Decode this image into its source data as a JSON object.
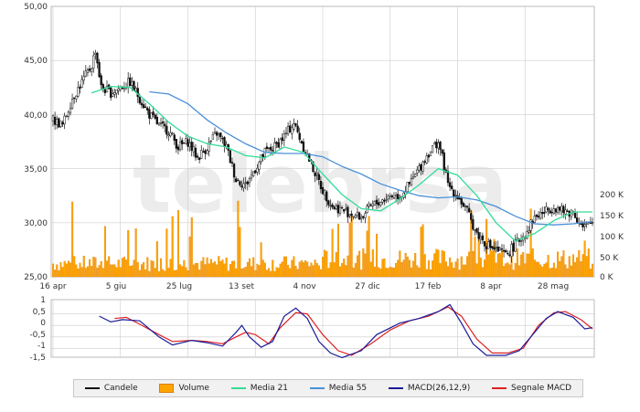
{
  "colors": {
    "candles": "#111111",
    "volume": "#ffa500",
    "volume_edge": "#e07b00",
    "ma21": "#33dd99",
    "ma55": "#4a90d9",
    "macd": "#1a1a99",
    "signal": "#dd2222",
    "grid": "#cccccc",
    "watermark": "#ececec"
  },
  "watermark": "telebrsa",
  "legend": {
    "candles": "Candele",
    "volume": "Volume",
    "ma21": "Media 21",
    "ma55": "Media 55",
    "macd": "MACD(26,12,9)",
    "signal": "Segnale MACD"
  },
  "chart_data": [
    {
      "type": "candlestick",
      "title": "",
      "x_ticks": [
        "16 apr",
        "5 giu",
        "25 lug",
        "13 set",
        "4 nov",
        "27 dic",
        "17 feb",
        "8 apr",
        "28 mag"
      ],
      "y_ticks": [
        "50,00",
        "45,00",
        "40,00",
        "35,00",
        "30,00",
        "25,00"
      ],
      "ylim": [
        25,
        50
      ],
      "grid": true,
      "price_points": [
        [
          0,
          39.5
        ],
        [
          5,
          39
        ],
        [
          10,
          41.5
        ],
        [
          15,
          43
        ],
        [
          20,
          44.5
        ],
        [
          22,
          46
        ],
        [
          25,
          42.5
        ],
        [
          30,
          42
        ],
        [
          35,
          42.5
        ],
        [
          40,
          43
        ],
        [
          45,
          41.5
        ],
        [
          50,
          40
        ],
        [
          55,
          39
        ],
        [
          60,
          38.5
        ],
        [
          65,
          37
        ],
        [
          70,
          37.5
        ],
        [
          75,
          36
        ],
        [
          80,
          37
        ],
        [
          85,
          38.3
        ],
        [
          90,
          37
        ],
        [
          95,
          34
        ],
        [
          100,
          33.5
        ],
        [
          105,
          35
        ],
        [
          110,
          36.5
        ],
        [
          115,
          37
        ],
        [
          120,
          38
        ],
        [
          125,
          39.2
        ],
        [
          130,
          37
        ],
        [
          135,
          35
        ],
        [
          140,
          33
        ],
        [
          145,
          31.5
        ],
        [
          150,
          31.2
        ],
        [
          155,
          30.8
        ],
        [
          160,
          30.5
        ],
        [
          165,
          31.5
        ],
        [
          170,
          32
        ],
        [
          175,
          32.5
        ],
        [
          180,
          32.5
        ],
        [
          185,
          33.5
        ],
        [
          190,
          35
        ],
        [
          195,
          36.5
        ],
        [
          200,
          37.5
        ],
        [
          202,
          36
        ],
        [
          205,
          33.5
        ],
        [
          210,
          32.5
        ],
        [
          215,
          31
        ],
        [
          220,
          29
        ],
        [
          225,
          28
        ],
        [
          230,
          27.5
        ],
        [
          235,
          27
        ],
        [
          240,
          28
        ],
        [
          245,
          29
        ],
        [
          250,
          30.5
        ],
        [
          255,
          31
        ],
        [
          260,
          31.5
        ],
        [
          265,
          31
        ],
        [
          270,
          31
        ],
        [
          275,
          29.5
        ],
        [
          280,
          30
        ]
      ],
      "series": [
        {
          "name": "Media 21",
          "points": [
            [
              20,
              42
            ],
            [
              30,
              42.6
            ],
            [
              40,
              42.5
            ],
            [
              50,
              41
            ],
            [
              60,
              39.3
            ],
            [
              70,
              38
            ],
            [
              80,
              37.3
            ],
            [
              90,
              37
            ],
            [
              100,
              36.2
            ],
            [
              110,
              36
            ],
            [
              120,
              37
            ],
            [
              130,
              36.5
            ],
            [
              140,
              34.5
            ],
            [
              150,
              32.6
            ],
            [
              160,
              31.3
            ],
            [
              170,
              31.1
            ],
            [
              180,
              32.2
            ],
            [
              190,
              33.5
            ],
            [
              200,
              35
            ],
            [
              210,
              34.4
            ],
            [
              220,
              32.5
            ],
            [
              230,
              30
            ],
            [
              240,
              28.3
            ],
            [
              250,
              29
            ],
            [
              260,
              30.2
            ],
            [
              270,
              31
            ],
            [
              280,
              31
            ]
          ]
        },
        {
          "name": "Media 55",
          "points": [
            [
              50,
              42.1
            ],
            [
              60,
              41.9
            ],
            [
              70,
              41
            ],
            [
              80,
              39.5
            ],
            [
              90,
              38.3
            ],
            [
              100,
              37.3
            ],
            [
              110,
              36.5
            ],
            [
              120,
              36.4
            ],
            [
              130,
              36.4
            ],
            [
              140,
              36.1
            ],
            [
              150,
              35.2
            ],
            [
              160,
              34.5
            ],
            [
              170,
              33.6
            ],
            [
              180,
              33
            ],
            [
              190,
              32.5
            ],
            [
              200,
              32.3
            ],
            [
              210,
              32.4
            ],
            [
              220,
              32.1
            ],
            [
              230,
              31.5
            ],
            [
              240,
              30.6
            ],
            [
              250,
              29.9
            ],
            [
              260,
              29.8
            ],
            [
              270,
              29.9
            ],
            [
              280,
              30.1
            ]
          ]
        }
      ]
    },
    {
      "type": "bar",
      "title": "",
      "y_ticks": [
        "200 K",
        "150 K",
        "100 K",
        "50 K",
        "0 K"
      ],
      "ylim": [
        0,
        200000
      ],
      "series": [
        {
          "name": "Volume"
        }
      ]
    },
    {
      "type": "line",
      "title": "",
      "y_ticks": [
        "1",
        "0,5",
        "0",
        "-0,5",
        "-1",
        "-1,5"
      ],
      "ylim": [
        -1.5,
        1
      ],
      "grid": true,
      "series": [
        {
          "name": "MACD(26,12,9)",
          "points": [
            [
              24,
              0.4
            ],
            [
              30,
              0.15
            ],
            [
              36,
              0.25
            ],
            [
              45,
              0.2
            ],
            [
              55,
              -0.5
            ],
            [
              62,
              -0.85
            ],
            [
              72,
              -0.65
            ],
            [
              80,
              -0.75
            ],
            [
              88,
              -0.9
            ],
            [
              95,
              -0.3
            ],
            [
              98,
              0.0
            ],
            [
              102,
              -0.5
            ],
            [
              108,
              -0.95
            ],
            [
              114,
              -0.7
            ],
            [
              120,
              0.4
            ],
            [
              126,
              0.75
            ],
            [
              132,
              0.3
            ],
            [
              138,
              -0.7
            ],
            [
              144,
              -1.2
            ],
            [
              150,
              -1.4
            ],
            [
              160,
              -1.1
            ],
            [
              168,
              -0.4
            ],
            [
              180,
              0.1
            ],
            [
              190,
              0.3
            ],
            [
              200,
              0.6
            ],
            [
              206,
              0.9
            ],
            [
              212,
              0.1
            ],
            [
              218,
              -0.8
            ],
            [
              225,
              -1.3
            ],
            [
              235,
              -1.3
            ],
            [
              242,
              -1.1
            ],
            [
              250,
              -0.3
            ],
            [
              256,
              0.3
            ],
            [
              262,
              0.6
            ],
            [
              270,
              0.35
            ],
            [
              276,
              -0.15
            ],
            [
              280,
              -0.1
            ]
          ]
        },
        {
          "name": "Segnale MACD",
          "points": [
            [
              32,
              0.3
            ],
            [
              38,
              0.35
            ],
            [
              45,
              0.05
            ],
            [
              55,
              -0.4
            ],
            [
              62,
              -0.7
            ],
            [
              72,
              -0.65
            ],
            [
              80,
              -0.7
            ],
            [
              88,
              -0.8
            ],
            [
              95,
              -0.5
            ],
            [
              100,
              -0.3
            ],
            [
              105,
              -0.4
            ],
            [
              112,
              -0.8
            ],
            [
              118,
              -0.1
            ],
            [
              126,
              0.55
            ],
            [
              132,
              0.5
            ],
            [
              140,
              -0.4
            ],
            [
              148,
              -1.1
            ],
            [
              155,
              -1.3
            ],
            [
              165,
              -0.8
            ],
            [
              175,
              -0.2
            ],
            [
              185,
              0.2
            ],
            [
              195,
              0.4
            ],
            [
              205,
              0.8
            ],
            [
              212,
              0.4
            ],
            [
              220,
              -0.6
            ],
            [
              228,
              -1.2
            ],
            [
              236,
              -1.2
            ],
            [
              244,
              -1.0
            ],
            [
              252,
              0.0
            ],
            [
              260,
              0.55
            ],
            [
              266,
              0.6
            ],
            [
              274,
              0.25
            ],
            [
              280,
              -0.15
            ]
          ]
        }
      ]
    }
  ]
}
